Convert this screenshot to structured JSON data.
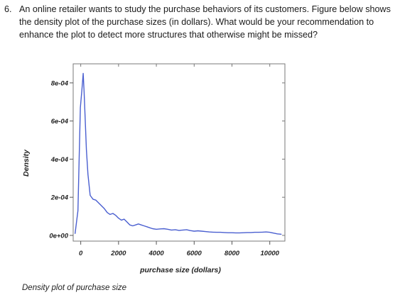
{
  "question": {
    "number": "6.",
    "text": "An online retailer wants to study the purchase behaviors of its customers. Figure below shows the density plot of the purchase sizes (in dollars). What would be your recommendation to enhance the plot to detect more structures that otherwise might be missed?"
  },
  "caption": "Density plot of purchase size",
  "chart_data": {
    "type": "line",
    "title": "",
    "xlabel": "purchase size (dollars)",
    "ylabel": "Density",
    "xlim": [
      -400,
      10800
    ],
    "ylim": [
      -3e-05,
      0.0009
    ],
    "x_ticks": [
      0,
      2000,
      4000,
      6000,
      8000,
      10000
    ],
    "x_tick_labels": [
      "0",
      "2000",
      "4000",
      "6000",
      "8000",
      "10000"
    ],
    "y_ticks": [
      0,
      0.0002,
      0.0004,
      0.0006,
      0.0008
    ],
    "y_tick_labels": [
      "0e+00",
      "2e-04",
      "4e-04",
      "6e-04",
      "8e-04"
    ],
    "grid": false,
    "legend": "none",
    "line_color": "#4a5fd0",
    "series": [
      {
        "x": [
          -300,
          -150,
          -20,
          60,
          130,
          180,
          230,
          300,
          380,
          500,
          650,
          800,
          950,
          1100,
          1250,
          1400,
          1550,
          1700,
          1850,
          2000,
          2150,
          2300,
          2450,
          2600,
          2750,
          2900,
          3050,
          3200,
          3350,
          3500,
          3650,
          3800,
          4000,
          4200,
          4400,
          4600,
          4800,
          5000,
          5200,
          5400,
          5600,
          5800,
          6000,
          6200,
          6400,
          6600,
          6800,
          7000,
          7200,
          7400,
          7600,
          7800,
          8000,
          8200,
          8400,
          8600,
          8800,
          9000,
          9200,
          9400,
          9600,
          9800,
          10000,
          10200,
          10400,
          10600
        ],
        "y": [
          1e-05,
          0.00013,
          0.00067,
          0.00076,
          0.00085,
          0.00075,
          0.00062,
          0.00045,
          0.00032,
          0.00021,
          0.00019,
          0.000185,
          0.00017,
          0.000155,
          0.00014,
          0.00012,
          0.00011,
          0.000115,
          0.000105,
          9e-05,
          8e-05,
          8.5e-05,
          7e-05,
          5.5e-05,
          5e-05,
          5.5e-05,
          6e-05,
          5.5e-05,
          5e-05,
          4.5e-05,
          4e-05,
          3.5e-05,
          3.2e-05,
          3.4e-05,
          3.5e-05,
          3.2e-05,
          2.8e-05,
          3e-05,
          2.6e-05,
          2.8e-05,
          3e-05,
          2.5e-05,
          2.2e-05,
          2.4e-05,
          2.2e-05,
          2e-05,
          1.8e-05,
          1.7e-05,
          1.6e-05,
          1.6e-05,
          1.5e-05,
          1.4e-05,
          1.4e-05,
          1.3e-05,
          1.3e-05,
          1.4e-05,
          1.5e-05,
          1.5e-05,
          1.6e-05,
          1.6e-05,
          1.7e-05,
          1.8e-05,
          1.6e-05,
          1.2e-05,
          8e-06,
          6e-06
        ]
      }
    ]
  }
}
